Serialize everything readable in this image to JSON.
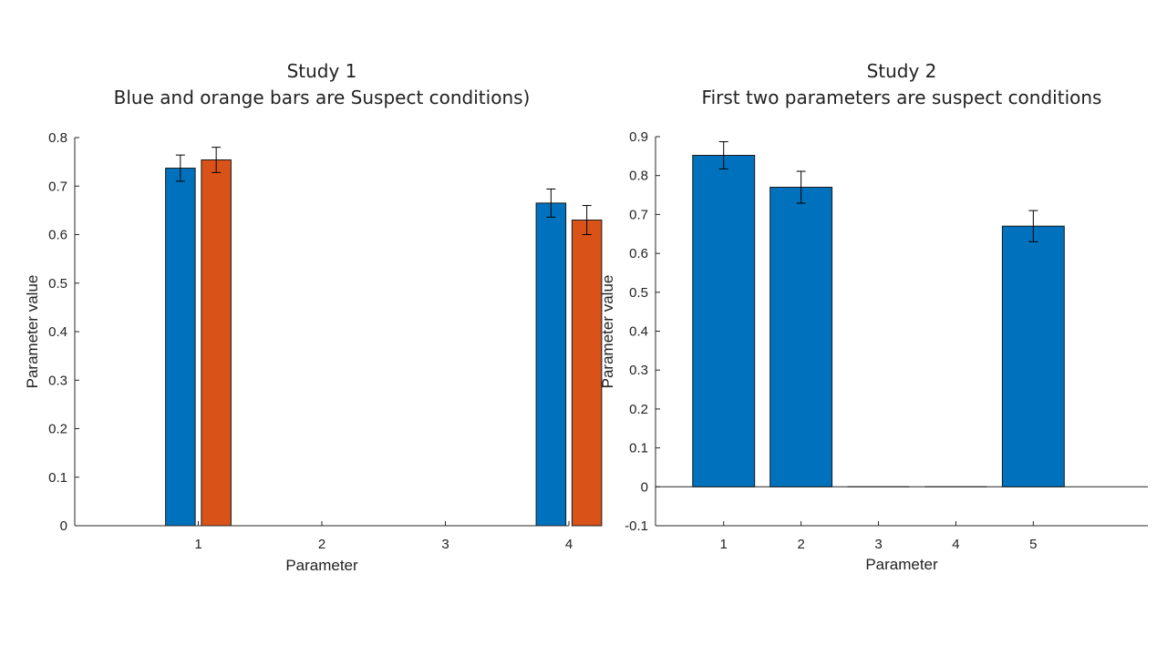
{
  "chart_data": [
    {
      "type": "bar",
      "title": "Study 1",
      "subtitle": "Blue and orange bars are Suspect conditions)",
      "xlabel": "Parameter",
      "ylabel": "Parameter value",
      "categories": [
        "1",
        "2",
        "3",
        "4"
      ],
      "ylim": [
        0,
        0.8
      ],
      "yticks": [
        "0",
        "0.1",
        "0.2",
        "0.3",
        "0.4",
        "0.5",
        "0.6",
        "0.7",
        "0.8"
      ],
      "grid": false,
      "legend": "none",
      "series": [
        {
          "color": "#0072BD",
          "values": [
            0.737,
            0,
            0,
            0.665
          ],
          "errors": [
            0.027,
            0,
            0,
            0.029
          ]
        },
        {
          "color": "#D95319",
          "values": [
            0.754,
            0,
            0,
            0.63
          ],
          "errors": [
            0.026,
            0,
            0,
            0.03
          ]
        }
      ]
    },
    {
      "type": "bar",
      "title": "Study 2",
      "subtitle": "First two parameters are suspect conditions",
      "xlabel": "Parameter",
      "ylabel": "Parameter value",
      "categories": [
        "1",
        "2",
        "3",
        "4",
        "5"
      ],
      "ylim": [
        -0.1,
        0.9
      ],
      "yticks": [
        "-0.1",
        "0",
        "0.1",
        "0.2",
        "0.3",
        "0.4",
        "0.5",
        "0.6",
        "0.7",
        "0.8",
        "0.9"
      ],
      "grid": false,
      "legend": "none",
      "series": [
        {
          "color": "#0072BD",
          "values": [
            0.852,
            0.77,
            0,
            0,
            0.67
          ],
          "errors": [
            0.035,
            0.041,
            0,
            0,
            0.04
          ]
        }
      ]
    }
  ]
}
